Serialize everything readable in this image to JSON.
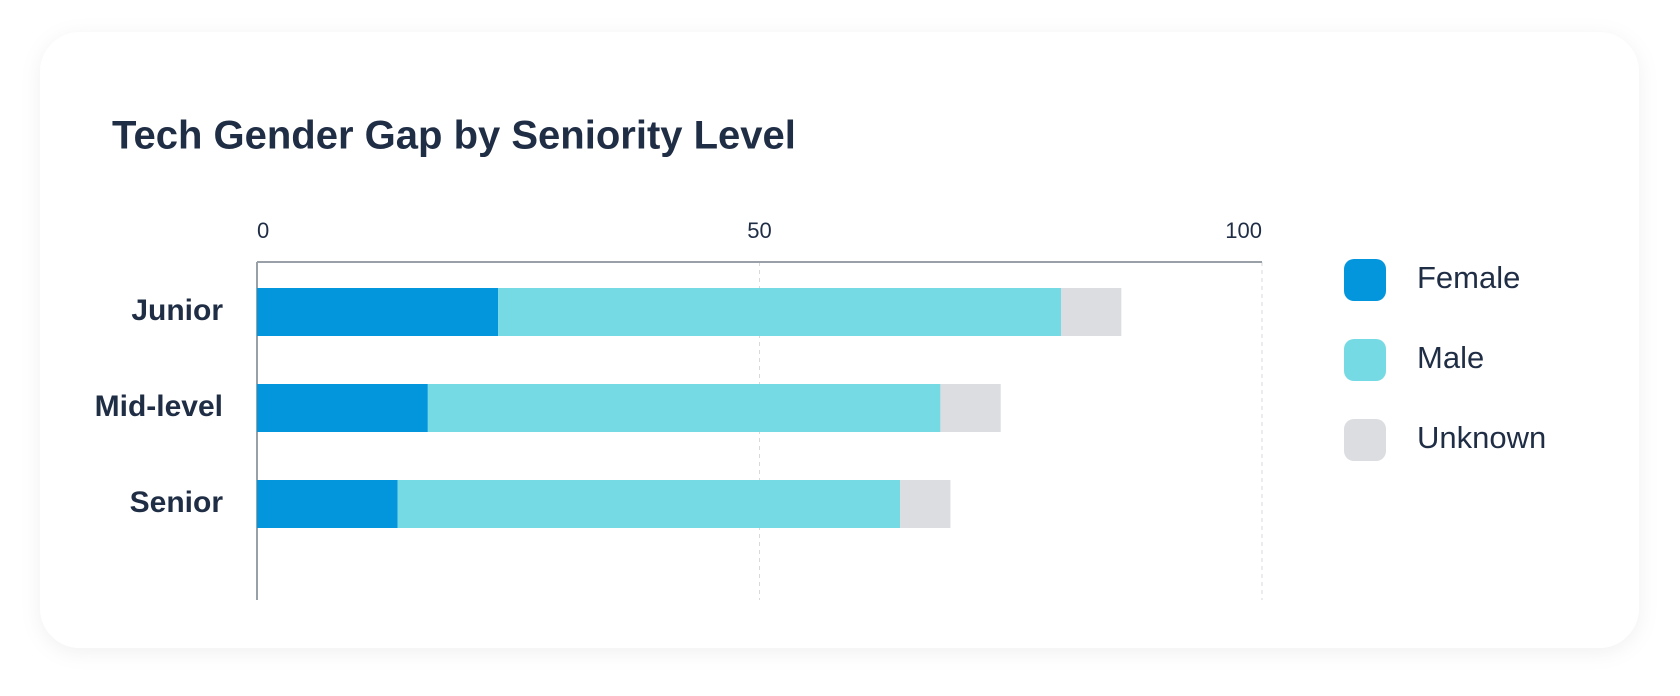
{
  "chart_data": {
    "type": "stacked-bar-horizontal",
    "title": "Tech Gender Gap by Seniority Level",
    "categories": [
      "Junior",
      "Mid-level",
      "Senior"
    ],
    "series": [
      {
        "name": "Female",
        "color": "#0396dc",
        "values": [
          24,
          17,
          14
        ]
      },
      {
        "name": "Male",
        "color": "#76dae4",
        "values": [
          56,
          51,
          50
        ]
      },
      {
        "name": "Unknown",
        "color": "#dcdde1",
        "values": [
          6,
          6,
          5
        ]
      }
    ],
    "xlim": [
      0,
      100
    ],
    "xticks": [
      0,
      50,
      100
    ],
    "grid": true,
    "legend": "right"
  }
}
